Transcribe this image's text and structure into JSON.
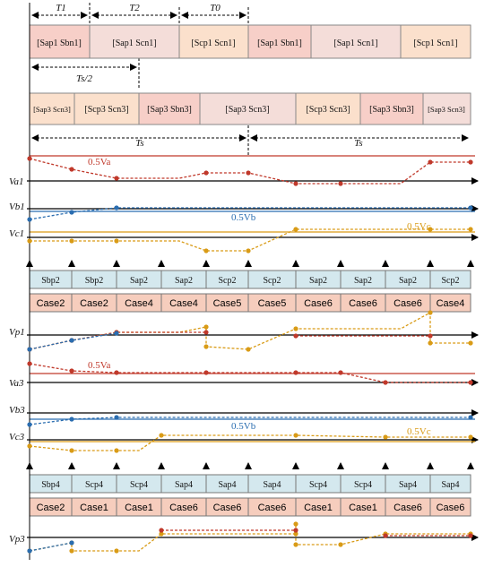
{
  "timing": {
    "T1": "T1",
    "T2": "T2",
    "T0": "T0",
    "Ts_half": "Ts/2",
    "Ts_a": "Ts",
    "Ts_b": "Ts"
  },
  "row1_blocks": [
    "[Sap1 Sbn1]",
    "[Sap1 Scn1]",
    "[Scp1 Scn1]",
    "[Sap1 Sbn1]",
    "[Sap1 Scn1]",
    "[Scp1 Scn1]"
  ],
  "row2_blocks": [
    "[Sap3 Scn3]",
    "[Scp3 Scn3]",
    "[Sap3 Sbn3]",
    "[Sap3 Scn3]",
    "[Scp3 Scn3]",
    "[Sap3 Sbn3]",
    "[Sap3 Scn3]"
  ],
  "waveform_labels": {
    "va1": "Va1",
    "vb1": "Vb1",
    "vc1": "Vc1",
    "half_va_1": "0.5Va",
    "half_vb_1": "0.5Vb",
    "half_vc_1": "0.5Vc",
    "vp1": "Vp1",
    "va3": "Va3",
    "vb3": "Vb3",
    "vc3": "Vc3",
    "half_va_2": "0.5Va",
    "half_vb_2": "0.5Vb",
    "half_vc_2": "0.5Vc",
    "vp3": "Vp3"
  },
  "switch_row_1": [
    "Sbp2",
    "Sbp2",
    "Sap2",
    "Sap2",
    "Scp2",
    "Scp2",
    "Sap2",
    "Sap2",
    "Sap2",
    "Scp2"
  ],
  "case_row_1": [
    "Case2",
    "Case2",
    "Case4",
    "Case4",
    "Case5",
    "Case5",
    "Case6",
    "Case6",
    "Case6",
    "Case4"
  ],
  "switch_row_2": [
    "Sbp4",
    "Scp4",
    "Scp4",
    "Sap4",
    "Sap4",
    "Sap4",
    "Scp4",
    "Scp4",
    "Sap4",
    "Sap4"
  ],
  "case_row_2": [
    "Case2",
    "Case1",
    "Case1",
    "Case6",
    "Case6",
    "Case6",
    "Case1",
    "Case1",
    "Case6",
    "Case6"
  ],
  "colors": {
    "phase_a": "#c0392b",
    "phase_b": "#2a6db0",
    "phase_c": "#d99b16",
    "block_pink": "#f7cfc8",
    "block_light_pink": "#f4ddd9",
    "block_peach": "#fbe0cc",
    "switch_fill": "#d4e8ee",
    "case_fill": "#f6cdbd"
  }
}
